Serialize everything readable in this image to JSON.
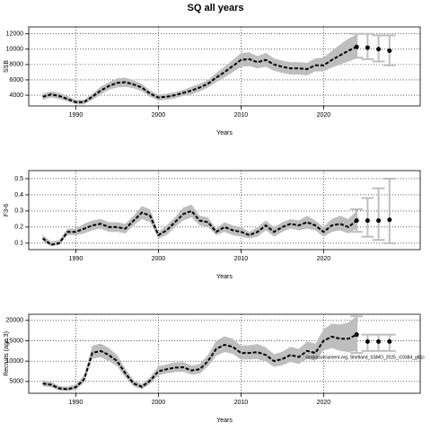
{
  "chart_data": [
    {
      "type": "line",
      "title": "SQ all years",
      "xlabel": "Years",
      "ylabel": "SSB",
      "band_color": "#bebebe",
      "line_color": "#000000",
      "grid": true,
      "xlim": [
        1984.3,
        2031.7
      ],
      "xticks": [
        1990,
        2000,
        2010,
        2020
      ],
      "ylim": [
        2600,
        12900
      ],
      "yticks": [
        4000,
        6000,
        8000,
        10000,
        12000
      ],
      "x": [
        1986,
        1987,
        1988,
        1989,
        1990,
        1991,
        1992,
        1993,
        1994,
        1995,
        1996,
        1997,
        1998,
        1999,
        2000,
        2001,
        2002,
        2003,
        2004,
        2005,
        2006,
        2007,
        2008,
        2009,
        2010,
        2011,
        2012,
        2013,
        2014,
        2015,
        2016,
        2017,
        2018,
        2019,
        2020,
        2021,
        2022,
        2023,
        2024
      ],
      "values": [
        3800,
        4100,
        3900,
        3500,
        3100,
        3100,
        3800,
        4600,
        5200,
        5600,
        5700,
        5400,
        5000,
        4200,
        3700,
        3800,
        4000,
        4300,
        4600,
        5000,
        5500,
        6300,
        7000,
        7800,
        8600,
        8700,
        8300,
        8600,
        8000,
        7700,
        7500,
        7500,
        7400,
        7900,
        7900,
        8600,
        9200,
        9800,
        10300
      ],
      "lower": [
        3400,
        3700,
        3500,
        3200,
        2800,
        2800,
        3400,
        4100,
        4700,
        5000,
        5100,
        4900,
        4500,
        3800,
        3300,
        3400,
        3600,
        3900,
        4100,
        4500,
        5000,
        5700,
        6300,
        7000,
        7700,
        7800,
        7500,
        7700,
        7200,
        6900,
        6700,
        6700,
        6600,
        7100,
        7100,
        7600,
        8000,
        8400,
        8800
      ],
      "upper": [
        4200,
        4500,
        4300,
        3900,
        3400,
        3400,
        4200,
        5100,
        5700,
        6200,
        6300,
        5900,
        5500,
        4600,
        4100,
        4200,
        4400,
        4700,
        5100,
        5500,
        6000,
        6900,
        7700,
        8600,
        9500,
        9600,
        9100,
        9500,
        8800,
        8500,
        8300,
        8300,
        8200,
        8800,
        8900,
        9800,
        10600,
        11400,
        11900
      ],
      "forecast": {
        "x": [
          2024,
          2025,
          2026,
          2027
        ],
        "values": [
          10300,
          10200,
          10000,
          9800
        ],
        "lower": [
          8900,
          8700,
          8400,
          7900
        ],
        "upper": [
          12000,
          12000,
          11800,
          11800
        ]
      }
    },
    {
      "type": "line",
      "xlabel": "Years",
      "ylabel": "F3-6",
      "band_color": "#bebebe",
      "line_color": "#000000",
      "grid": true,
      "xlim": [
        1984.3,
        2031.7
      ],
      "xticks": [
        1990,
        2000,
        2010,
        2020
      ],
      "ylim": [
        0.06,
        0.55
      ],
      "yticks": [
        0.1,
        0.2,
        0.3,
        0.4,
        0.5
      ],
      "x": [
        1986,
        1987,
        1988,
        1989,
        1990,
        1991,
        1992,
        1993,
        1994,
        1995,
        1996,
        1997,
        1998,
        1999,
        2000,
        2001,
        2002,
        2003,
        2004,
        2005,
        2006,
        2007,
        2008,
        2009,
        2010,
        2011,
        2012,
        2013,
        2014,
        2015,
        2016,
        2017,
        2018,
        2019,
        2020,
        2021,
        2022,
        2023,
        2024
      ],
      "values": [
        0.13,
        0.09,
        0.1,
        0.17,
        0.17,
        0.19,
        0.21,
        0.22,
        0.2,
        0.2,
        0.19,
        0.24,
        0.29,
        0.27,
        0.15,
        0.18,
        0.23,
        0.28,
        0.3,
        0.24,
        0.23,
        0.17,
        0.2,
        0.18,
        0.17,
        0.15,
        0.17,
        0.21,
        0.17,
        0.2,
        0.22,
        0.21,
        0.23,
        0.21,
        0.17,
        0.21,
        0.22,
        0.2,
        0.24
      ],
      "lower": [
        0.11,
        0.08,
        0.09,
        0.15,
        0.15,
        0.16,
        0.18,
        0.19,
        0.17,
        0.17,
        0.16,
        0.21,
        0.25,
        0.23,
        0.13,
        0.15,
        0.2,
        0.24,
        0.26,
        0.21,
        0.2,
        0.15,
        0.17,
        0.15,
        0.14,
        0.13,
        0.14,
        0.18,
        0.14,
        0.17,
        0.19,
        0.18,
        0.19,
        0.18,
        0.14,
        0.17,
        0.18,
        0.16,
        0.19
      ],
      "upper": [
        0.15,
        0.11,
        0.12,
        0.19,
        0.19,
        0.22,
        0.24,
        0.25,
        0.23,
        0.23,
        0.22,
        0.27,
        0.33,
        0.31,
        0.17,
        0.21,
        0.26,
        0.32,
        0.34,
        0.27,
        0.26,
        0.19,
        0.23,
        0.21,
        0.2,
        0.17,
        0.2,
        0.24,
        0.2,
        0.23,
        0.25,
        0.24,
        0.27,
        0.24,
        0.2,
        0.25,
        0.27,
        0.25,
        0.3
      ],
      "forecast": {
        "x": [
          2024,
          2025,
          2026,
          2027
        ],
        "values": [
          0.24,
          0.24,
          0.24,
          0.245
        ],
        "lower": [
          0.17,
          0.14,
          0.12,
          0.1
        ],
        "upper": [
          0.31,
          0.38,
          0.44,
          0.5
        ]
      }
    },
    {
      "type": "line",
      "xlabel": "Years",
      "ylabel": "Recruits (age 3)",
      "band_color": "#bebebe",
      "line_color": "#000000",
      "grid": true,
      "xlim": [
        1984.3,
        2031.7
      ],
      "xticks": [
        1990,
        2000,
        2010,
        2020
      ],
      "ylim": [
        2100,
        21500
      ],
      "yticks": [
        5000,
        10000,
        15000,
        20000
      ],
      "annotation": "stockassessment.org, Shetland_SSMO_2025_r19384_g81c",
      "x": [
        1986,
        1987,
        1988,
        1989,
        1990,
        1991,
        1992,
        1993,
        1994,
        1995,
        1996,
        1997,
        1998,
        1999,
        2000,
        2001,
        2002,
        2003,
        2004,
        2005,
        2006,
        2007,
        2008,
        2009,
        2010,
        2011,
        2012,
        2013,
        2014,
        2015,
        2016,
        2017,
        2018,
        2019,
        2020,
        2021,
        2022,
        2023,
        2024
      ],
      "values": [
        4500,
        4200,
        3300,
        3100,
        3600,
        5500,
        12000,
        12500,
        11500,
        10000,
        7000,
        4500,
        3700,
        5200,
        7500,
        8000,
        8400,
        8500,
        7700,
        8000,
        10000,
        13000,
        14000,
        13500,
        12000,
        12000,
        12200,
        11500,
        10000,
        10500,
        11500,
        11000,
        12500,
        12000,
        15000,
        16000,
        15500,
        15500,
        16500
      ],
      "lower": [
        3800,
        3600,
        2800,
        2600,
        3000,
        4700,
        10500,
        11000,
        10000,
        8700,
        6000,
        3800,
        3100,
        4400,
        6500,
        7000,
        7300,
        7400,
        6700,
        6900,
        8700,
        11300,
        12200,
        11800,
        10400,
        10400,
        10500,
        9900,
        8600,
        9000,
        9800,
        9300,
        10600,
        10100,
        12600,
        13200,
        12500,
        12200,
        12500
      ],
      "upper": [
        5300,
        4900,
        3900,
        3700,
        4300,
        6500,
        13800,
        14300,
        13200,
        11500,
        8100,
        5300,
        4400,
        6100,
        8700,
        9200,
        9700,
        9800,
        8900,
        9300,
        11500,
        15000,
        16100,
        15500,
        13800,
        13900,
        14200,
        13400,
        11700,
        12300,
        13500,
        13000,
        14800,
        14300,
        17800,
        19200,
        19000,
        19500,
        21000
      ],
      "forecast": {
        "x": [
          2024,
          2025,
          2026,
          2027
        ],
        "values": [
          16500,
          14800,
          14800,
          14800
        ],
        "lower": [
          12000,
          12500,
          12500,
          12500
        ],
        "upper": [
          21000,
          16500,
          16500,
          16500
        ]
      }
    }
  ]
}
